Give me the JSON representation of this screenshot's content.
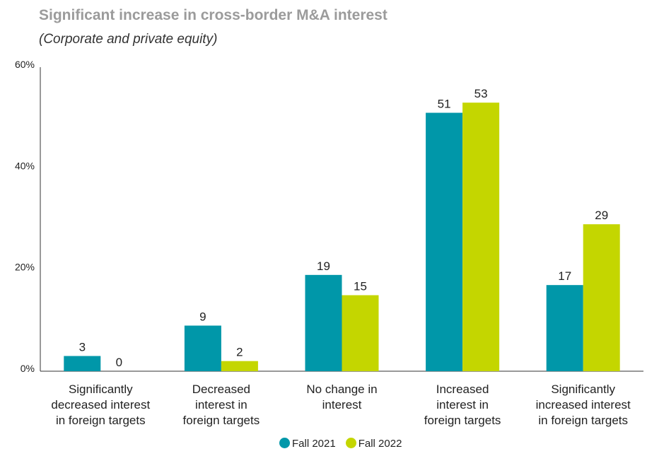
{
  "chart_data": {
    "type": "bar",
    "title": "Significant increase in cross-border M&A interest",
    "subtitle": "(Corporate and private equity)",
    "categories": [
      [
        "Significantly",
        "decreased interest",
        "in foreign targets"
      ],
      [
        "Decreased",
        "interest in",
        "foreign targets"
      ],
      [
        "No change in",
        "interest"
      ],
      [
        "Increased",
        "interest in",
        "foreign targets"
      ],
      [
        "Significantly",
        "increased interest",
        "in foreign targets"
      ]
    ],
    "series": [
      {
        "name": "Fall 2021",
        "color": "#0097a9",
        "values": [
          3,
          9,
          19,
          51,
          17
        ]
      },
      {
        "name": "Fall 2022",
        "color": "#c4d600",
        "values": [
          0,
          2,
          15,
          53,
          29
        ]
      }
    ],
    "ylim": [
      0,
      60
    ],
    "yticks": [
      "0%",
      "20%",
      "40%",
      "60%"
    ],
    "ytick_values": [
      0,
      20,
      40,
      60
    ],
    "grid": false,
    "legend": "bottom-center"
  }
}
